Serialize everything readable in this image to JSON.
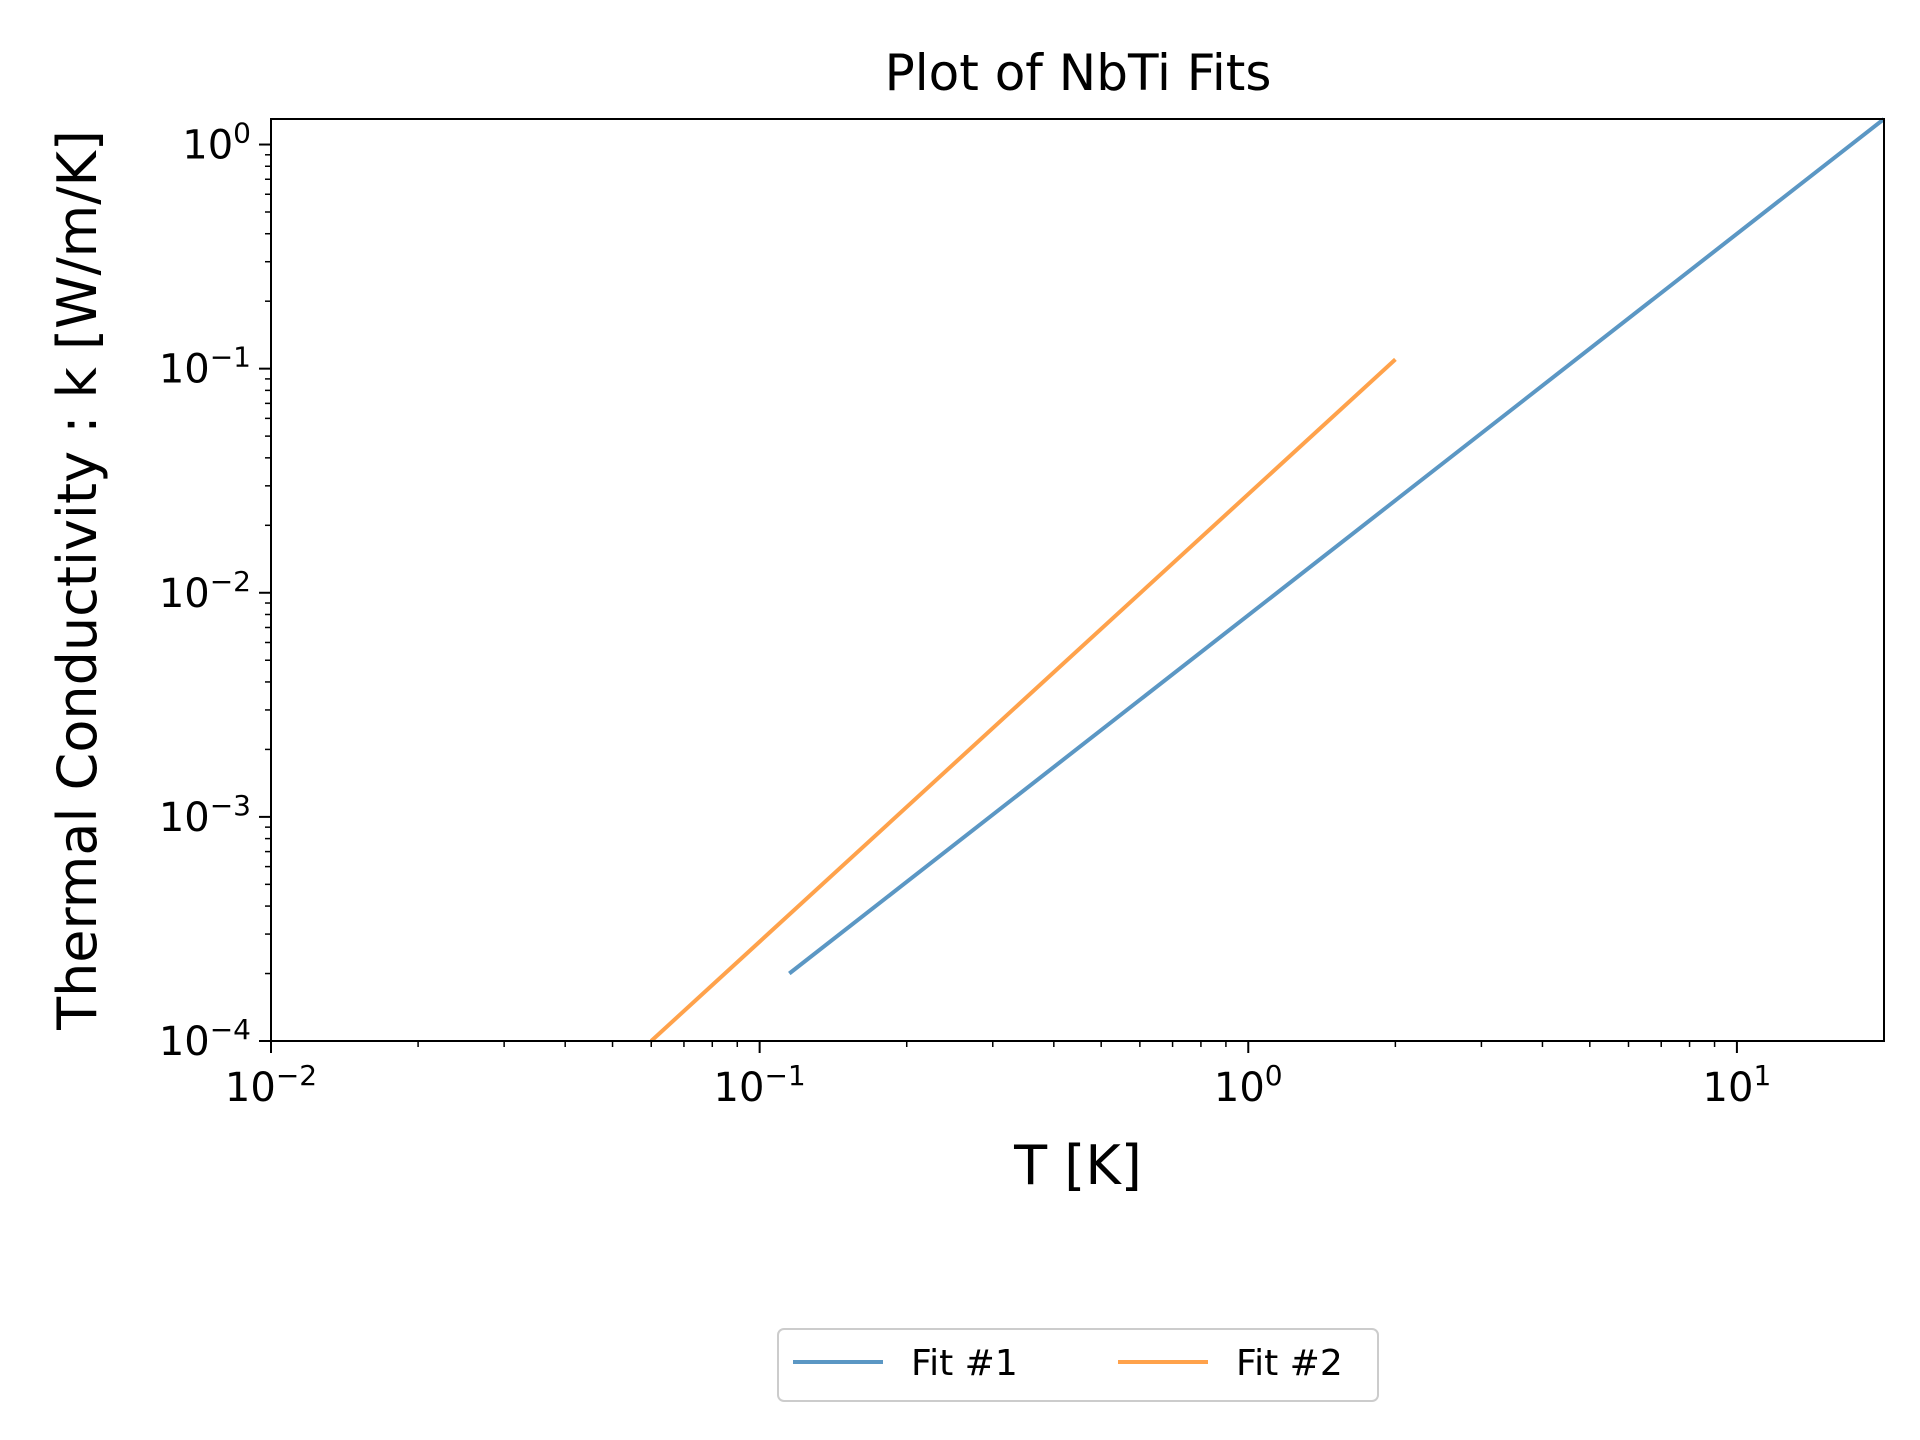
{
  "chart_data": {
    "type": "line",
    "title": "Plot of NbTi Fits",
    "xlabel": "T [K]",
    "ylabel": "Thermal Conductivity : k [W/m/K]",
    "xscale": "log",
    "yscale": "log",
    "xlim": [
      0.01,
      20
    ],
    "ylim": [
      0.0001,
      1.3
    ],
    "grid": false,
    "legend_position": "bottom-center",
    "x_ticks": [
      {
        "base": "10",
        "exp": "−2",
        "value": 0.01
      },
      {
        "base": "10",
        "exp": "−1",
        "value": 0.1
      },
      {
        "base": "10",
        "exp": "0",
        "value": 1
      },
      {
        "base": "10",
        "exp": "1",
        "value": 10
      }
    ],
    "y_ticks": [
      {
        "base": "10",
        "exp": "−4",
        "value": 0.0001
      },
      {
        "base": "10",
        "exp": "−3",
        "value": 0.001
      },
      {
        "base": "10",
        "exp": "−2",
        "value": 0.01
      },
      {
        "base": "10",
        "exp": "−1",
        "value": 0.1
      },
      {
        "base": "10",
        "exp": "0",
        "value": 1
      }
    ],
    "series": [
      {
        "name": "Fit #1",
        "color": "#5b97c4",
        "x": [
          0.115,
          20
        ],
        "y": [
          0.0002,
          1.3
        ]
      },
      {
        "name": "Fit #2",
        "color": "#ffa24b",
        "x": [
          0.06,
          2.0
        ],
        "y": [
          0.0001,
          0.11
        ]
      }
    ]
  }
}
